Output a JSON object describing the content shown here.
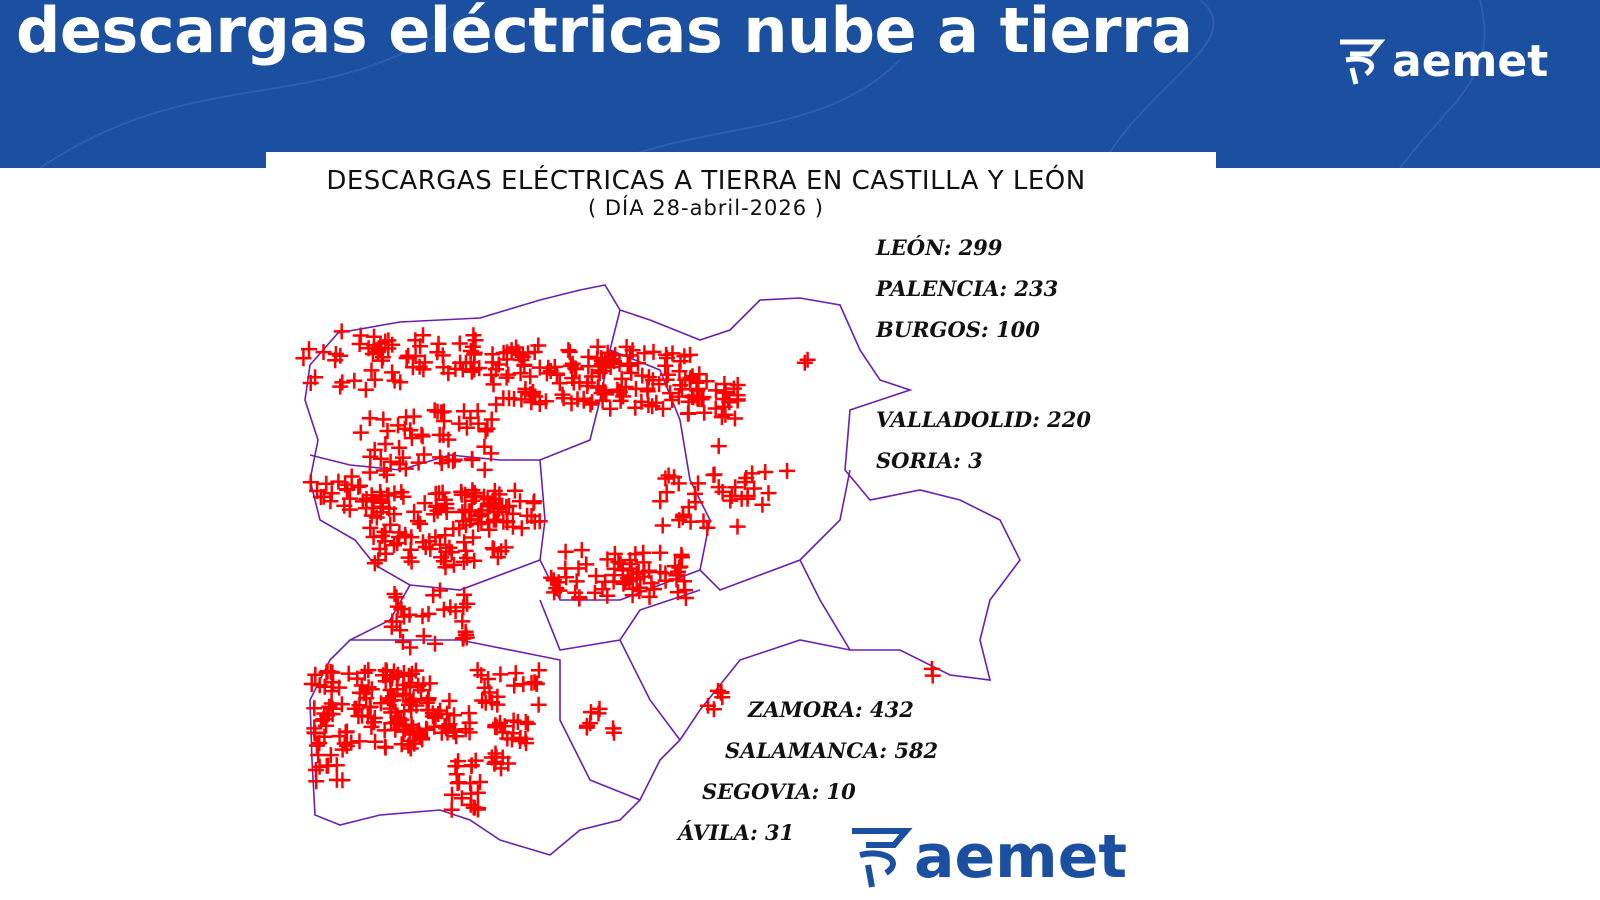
{
  "header": {
    "title": "descargas eléctricas nube a tierra",
    "logo": "aemet"
  },
  "map": {
    "title": "DESCARGAS ELÉCTRICAS A TIERRA EN CASTILLA Y LEÓN",
    "subtitle": "( DÍA 28-abril-2026 )",
    "provinces_top": [
      "LEÓN: 299",
      "PALENCIA: 233",
      "BURGOS: 100",
      "VALLADOLID: 220",
      "SORIA: 3"
    ],
    "provinces_bottom": [
      "ZAMORA: 432",
      "SALAMANCA: 582",
      "SEGOVIA: 10",
      "ÁVILA: 31"
    ],
    "logo": "aemet"
  }
}
